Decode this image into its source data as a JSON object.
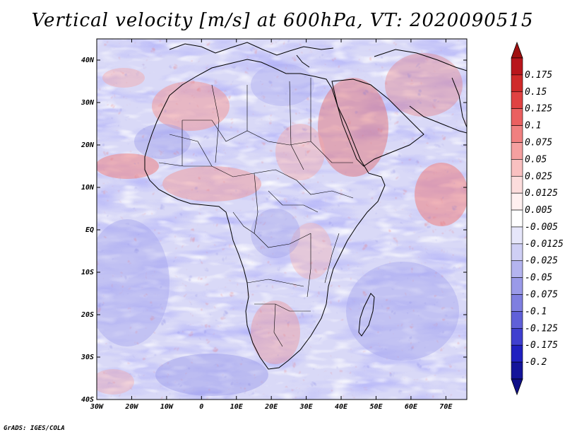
{
  "title": "Vertical velocity [m/s] at 600hPa, VT: 2020090515",
  "credit": "GrADS: IGES/COLA",
  "map": {
    "region": "Africa",
    "projection": "latlon",
    "lon_range": [
      -30,
      76
    ],
    "lat_range": [
      -40,
      45
    ],
    "x_tick_labels": [
      "30W",
      "20W",
      "10W",
      "0",
      "10E",
      "20E",
      "30E",
      "40E",
      "50E",
      "60E",
      "70E"
    ],
    "x_tick_values": [
      -30,
      -20,
      -10,
      0,
      10,
      20,
      30,
      40,
      50,
      60,
      70
    ],
    "y_tick_labels": [
      "40N",
      "30N",
      "20N",
      "10N",
      "EQ",
      "10S",
      "20S",
      "30S",
      "40S"
    ],
    "y_tick_values": [
      40,
      30,
      20,
      10,
      0,
      -10,
      -20,
      -30,
      -40
    ]
  },
  "colorbar": {
    "labels": [
      "0.175",
      "0.15",
      "0.125",
      "0.1",
      "0.075",
      "0.05",
      "0.025",
      "0.0125",
      "0.005",
      "-0.005",
      "-0.0125",
      "-0.025",
      "-0.05",
      "-0.075",
      "-0.1",
      "-0.125",
      "-0.175",
      "-0.2"
    ],
    "colors": [
      "#b8161c",
      "#cf2a2a",
      "#e04242",
      "#ea6060",
      "#f08080",
      "#f5a0a0",
      "#f9c0c0",
      "#fcdcdc",
      "#fff0f0",
      "#ffffff",
      "#e6e6fa",
      "#cfcff5",
      "#b4b4ef",
      "#9a9ae8",
      "#7f7fe0",
      "#6060d8",
      "#3f3fcf",
      "#2020c0",
      "#14149a"
    ],
    "top_arrow_color": "#a01010",
    "bottom_arrow_color": "#101088"
  }
}
